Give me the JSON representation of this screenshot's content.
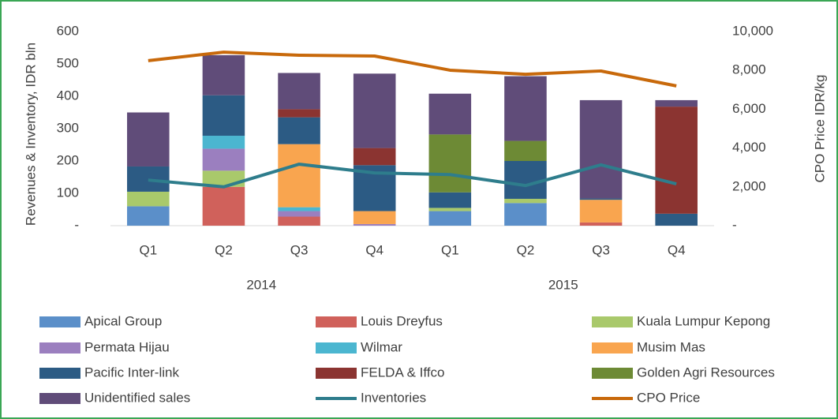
{
  "chart_data": {
    "type": "combo",
    "ylabel": "Revenues & Inventory, IDR bln",
    "y2label": "CPO Price IDR/kg",
    "categories": [
      "Q1",
      "Q2",
      "Q3",
      "Q4",
      "Q1",
      "Q2",
      "Q3",
      "Q4"
    ],
    "groups": [
      "2014",
      "2015"
    ],
    "ylim": [
      0,
      600
    ],
    "yticks": [
      {
        "value": 0,
        "label": "-"
      },
      100,
      200,
      300,
      400,
      500,
      600
    ],
    "y2lim": [
      0,
      10000
    ],
    "y2ticks": [
      {
        "value": 0,
        "label": "-"
      },
      {
        "value": 2000,
        "label": "2,000"
      },
      {
        "value": 4000,
        "label": "4,000"
      },
      {
        "value": 6000,
        "label": "6,000"
      },
      {
        "value": 8000,
        "label": "8,000"
      },
      {
        "value": 10000,
        "label": "10,000"
      }
    ],
    "stacked": true,
    "legend": "bottom",
    "series": [
      {
        "name": "Apical Group",
        "type": "bar",
        "color": "#5b8fc9",
        "values": [
          60,
          0,
          0,
          0,
          45,
          70,
          0,
          0
        ]
      },
      {
        "name": "Louis Dreyfus",
        "type": "bar",
        "color": "#d0615b",
        "values": [
          0,
          120,
          28,
          0,
          0,
          0,
          10,
          0
        ]
      },
      {
        "name": "Kuala Lumpur Kepong",
        "type": "bar",
        "color": "#a9c96b",
        "values": [
          45,
          50,
          0,
          0,
          10,
          13,
          0,
          0
        ]
      },
      {
        "name": "Permata Hijau",
        "type": "bar",
        "color": "#9b7fbf",
        "values": [
          0,
          68,
          17,
          5,
          0,
          0,
          0,
          0
        ]
      },
      {
        "name": "Wilmar",
        "type": "bar",
        "color": "#4bb6d0",
        "values": [
          0,
          40,
          12,
          0,
          0,
          0,
          0,
          0
        ]
      },
      {
        "name": "Musim Mas",
        "type": "bar",
        "color": "#f9a54f",
        "values": [
          0,
          0,
          195,
          40,
          0,
          0,
          70,
          0
        ]
      },
      {
        "name": "Pacific Inter-link",
        "type": "bar",
        "color": "#2c5b84",
        "values": [
          78,
          125,
          83,
          142,
          48,
          117,
          4,
          37
        ]
      },
      {
        "name": "FELDA & Iffco",
        "type": "bar",
        "color": "#8b3431",
        "values": [
          0,
          0,
          25,
          53,
          0,
          0,
          0,
          331
        ]
      },
      {
        "name": "Golden Agri Resources",
        "type": "bar",
        "color": "#6d8a35",
        "values": [
          0,
          0,
          0,
          0,
          179,
          62,
          0,
          0
        ]
      },
      {
        "name": "Unidentified sales",
        "type": "bar",
        "color": "#604c79",
        "values": [
          167,
          124,
          112,
          230,
          126,
          200,
          304,
          20
        ]
      },
      {
        "name": "Inventories",
        "type": "line",
        "color": "#2e7d8c",
        "values": [
          141,
          120,
          190,
          163,
          158,
          124,
          188,
          129
        ]
      },
      {
        "name": "CPO Price",
        "type": "line",
        "axis": "y2",
        "color": "#c8690b",
        "values": [
          8500,
          8940,
          8780,
          8740,
          8010,
          7800,
          7970,
          7200
        ]
      }
    ]
  }
}
